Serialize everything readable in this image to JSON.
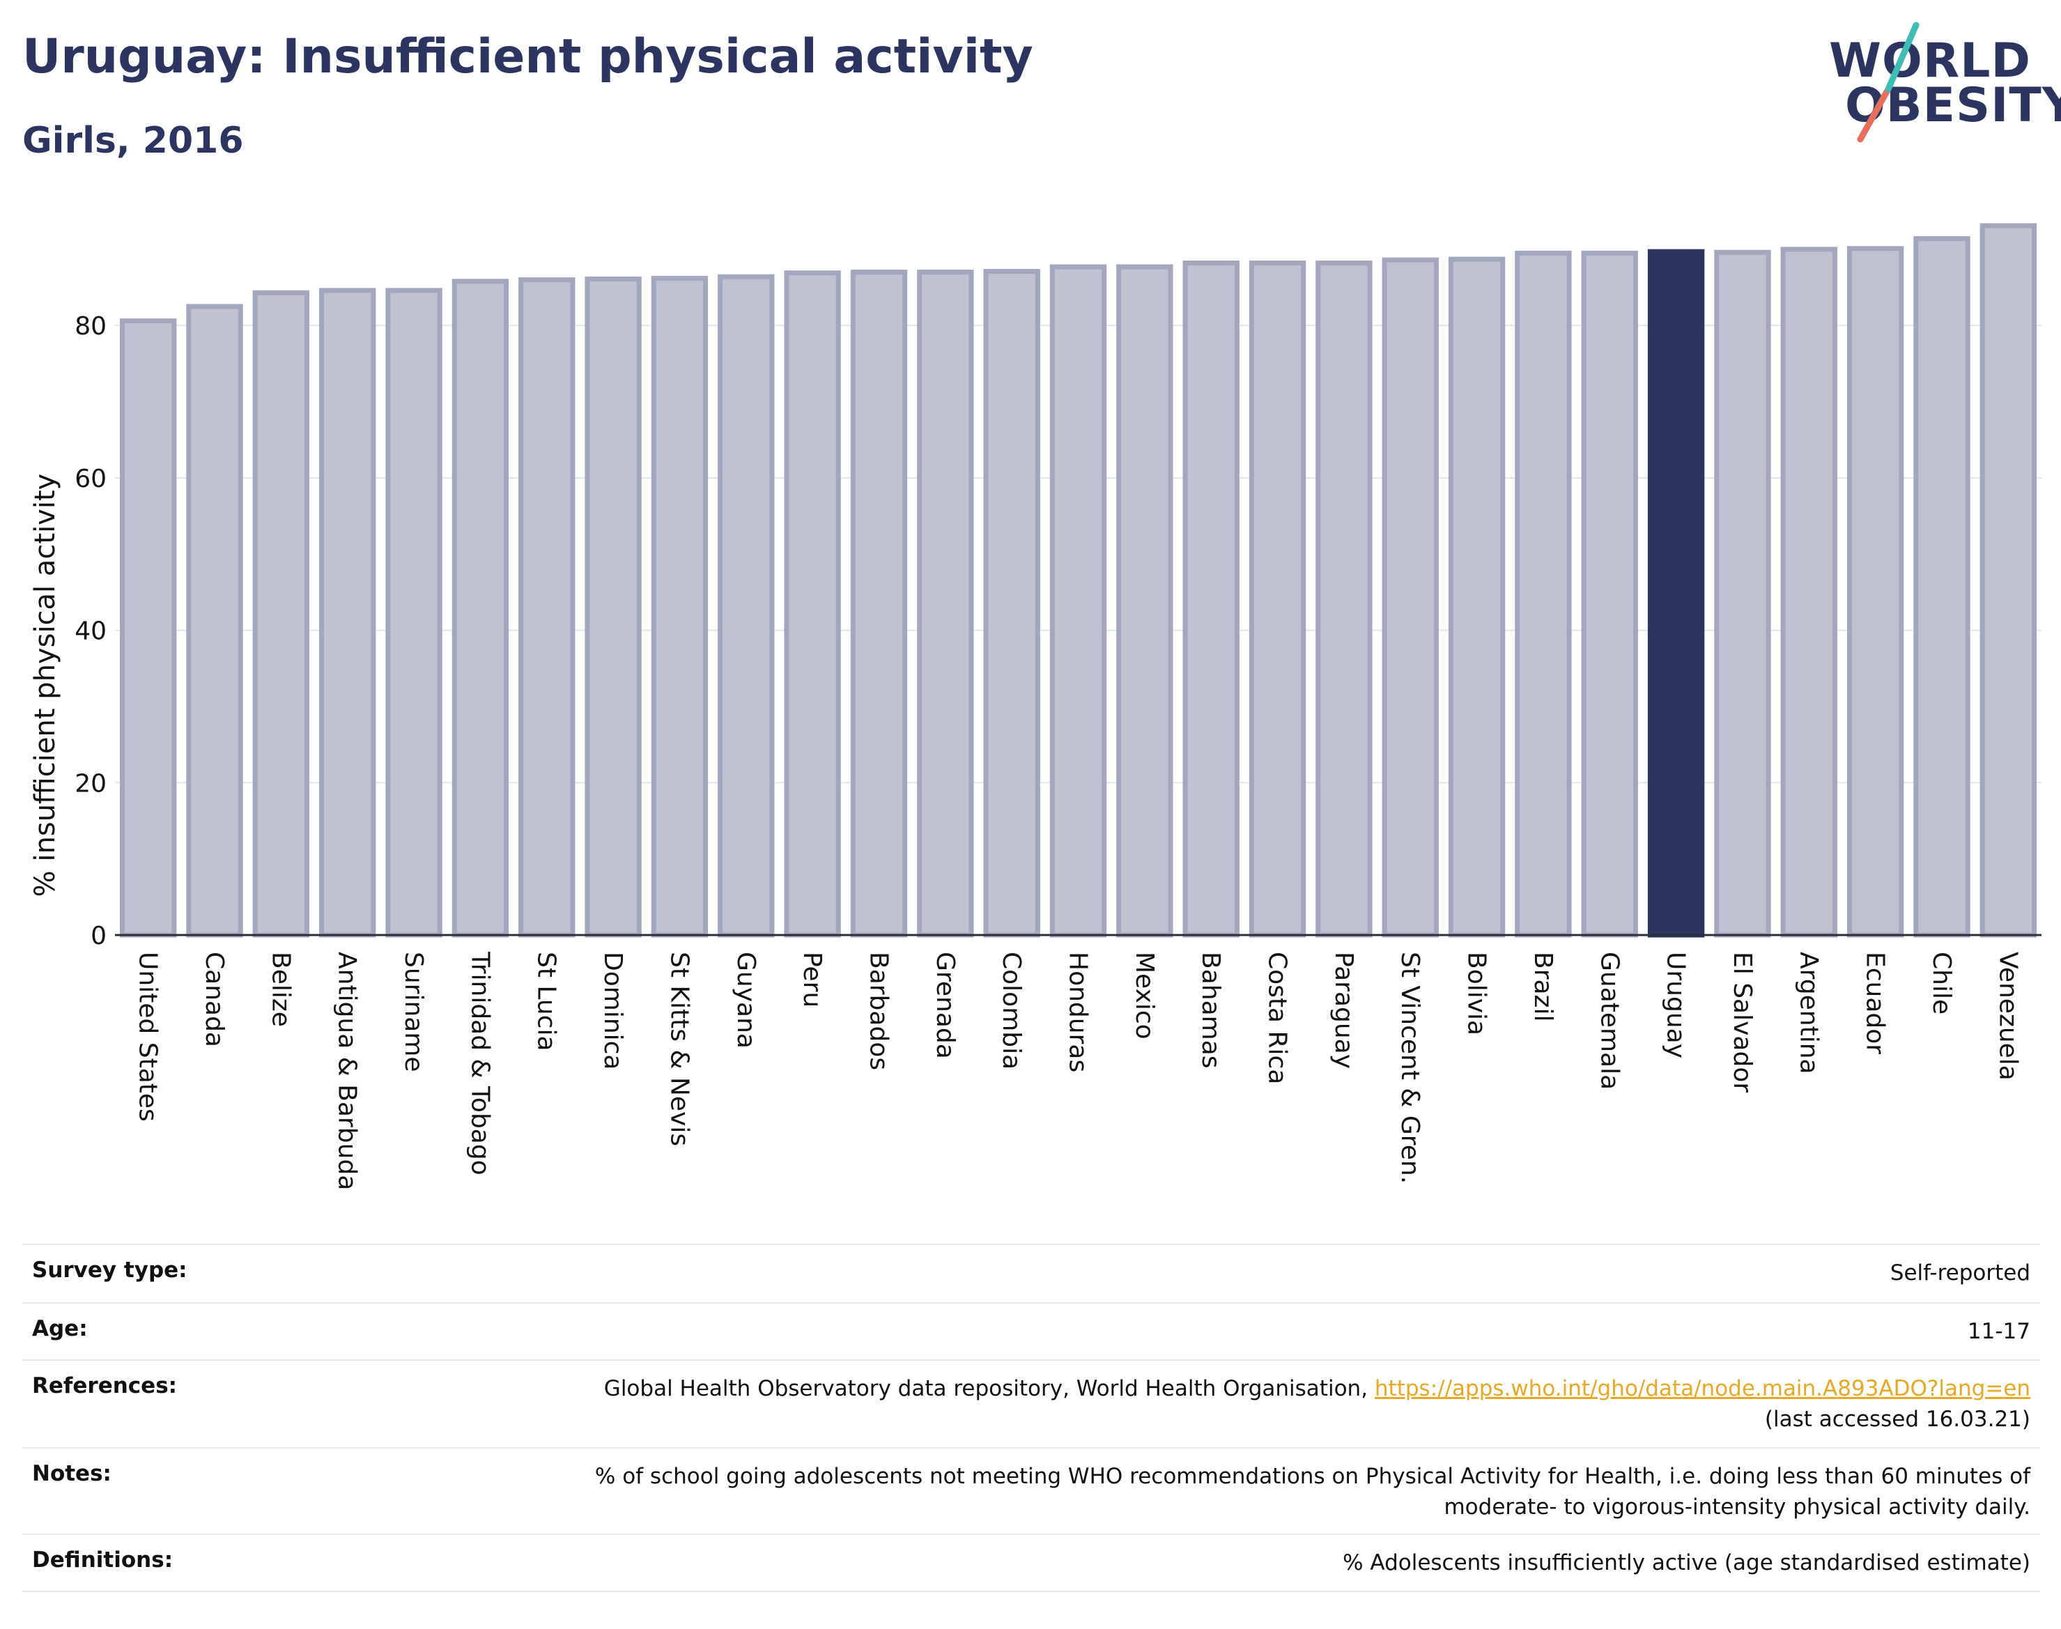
{
  "title": "Uruguay: Insufficient physical activity",
  "subtitle": "Girls, 2016",
  "logo": {
    "line1": "WORLD",
    "line2": "OBESITY"
  },
  "colors": {
    "bar": "#c0c2d1",
    "bar_stroke": "#a3a7be",
    "highlight": "#2b3560",
    "title": "#2b3560",
    "link": "#e9a823"
  },
  "chart_data": {
    "type": "bar",
    "title": "Uruguay: Insufficient physical activity",
    "subtitle": "Girls, 2016",
    "ylabel": "% insufficient physical activity",
    "xlabel": "",
    "ylim": [
      0,
      93
    ],
    "yticks": [
      0,
      20,
      40,
      60,
      80
    ],
    "grid": true,
    "highlight": "Uruguay",
    "categories": [
      "United States",
      "Canada",
      "Belize",
      "Antigua & Barbuda",
      "Suriname",
      "Trinidad & Tobago",
      "St Lucia",
      "Dominica",
      "St Kitts & Nevis",
      "Guyana",
      "Peru",
      "Barbados",
      "Grenada",
      "Colombia",
      "Honduras",
      "Mexico",
      "Bahamas",
      "Costa Rica",
      "Paraguay",
      "St Vincent & Gren.",
      "Bolivia",
      "Brazil",
      "Guatemala",
      "Uruguay",
      "El Salvador",
      "Argentina",
      "Ecuador",
      "Chile",
      "Venezuela"
    ],
    "values": [
      80.6,
      82.5,
      84.3,
      84.6,
      84.6,
      85.8,
      86.0,
      86.1,
      86.2,
      86.4,
      86.9,
      87.0,
      87.0,
      87.1,
      87.7,
      87.7,
      88.2,
      88.2,
      88.2,
      88.6,
      88.7,
      89.5,
      89.5,
      89.7,
      89.6,
      90.0,
      90.1,
      91.4,
      93.1
    ]
  },
  "info": [
    {
      "label": "Survey type:",
      "value": "Self-reported"
    },
    {
      "label": "Age:",
      "value": "11-17"
    },
    {
      "label": "References:",
      "value": "Global Health Observatory data repository, World Health Organisation,",
      "link": "https://apps.who.int/gho/data/node.main.A893ADO?lang=en",
      "value2": "(last accessed 16.03.21)"
    },
    {
      "label": "Notes:",
      "value": "% of school going adolescents not meeting WHO recommendations on Physical Activity for Health, i.e. doing less than 60 minutes of moderate- to vigorous-intensity physical activity daily."
    },
    {
      "label": "Definitions:",
      "value": "% Adolescents insufficiently active (age standardised estimate)"
    }
  ]
}
